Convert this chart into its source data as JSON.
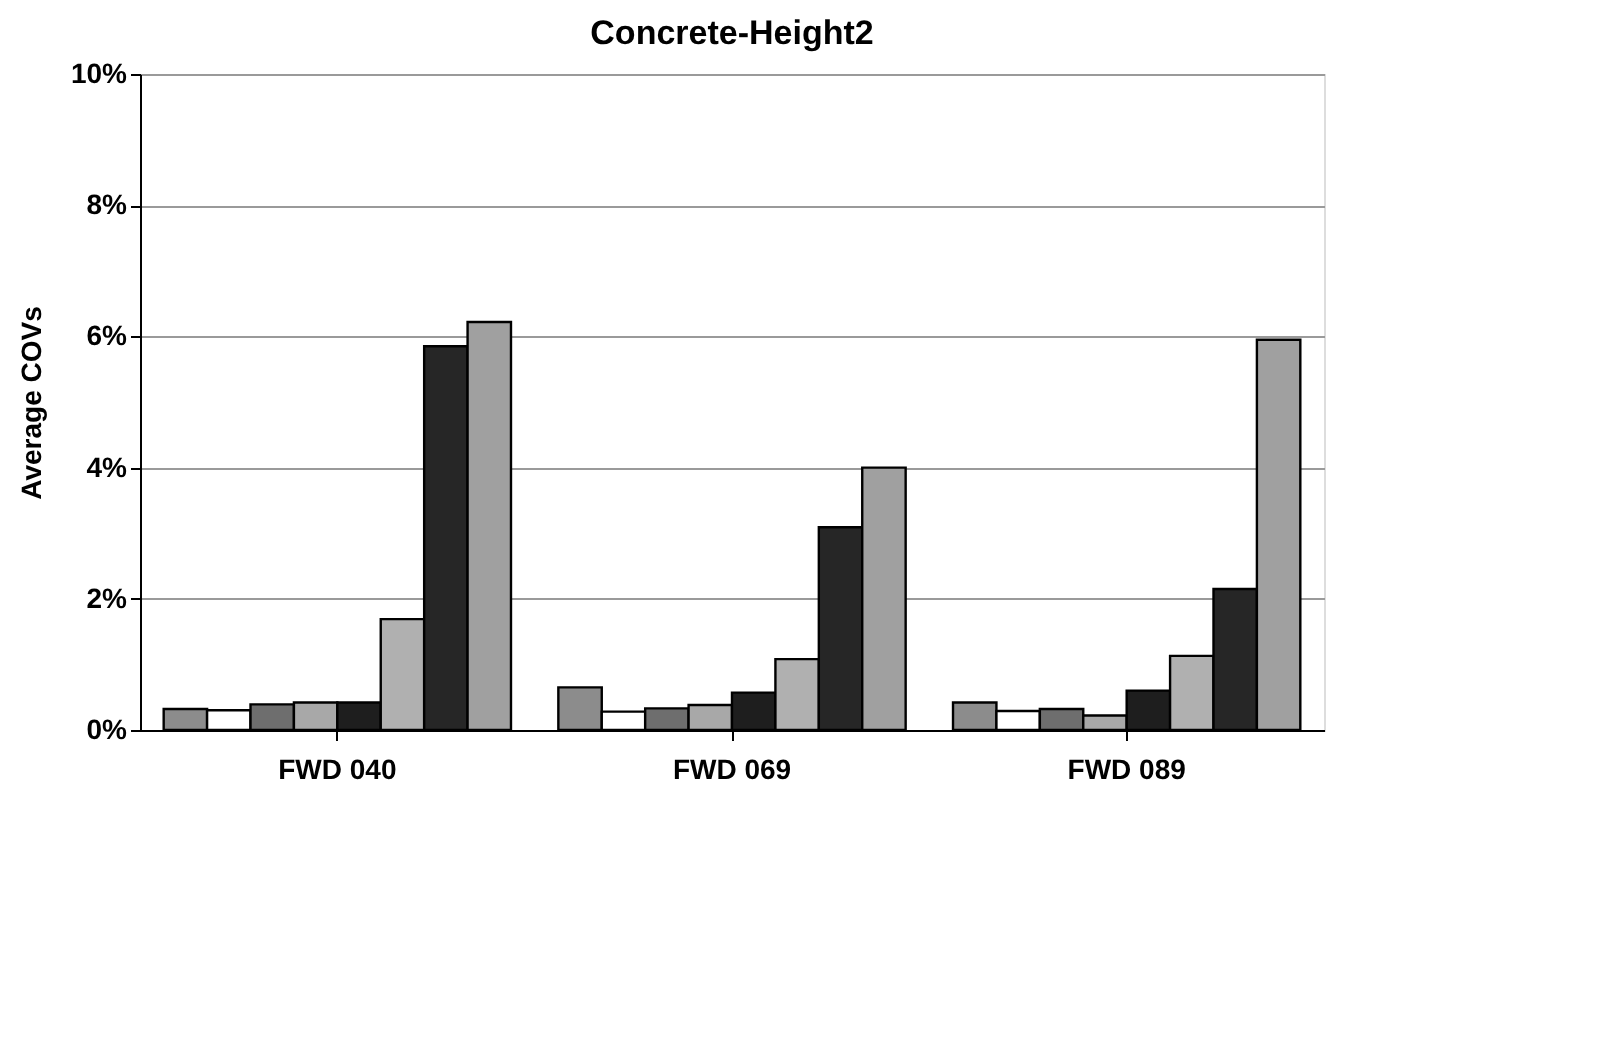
{
  "chart_data": {
    "type": "bar",
    "title": "Concrete-Height2",
    "ylabel": "Average COVs",
    "categories": [
      "FWD 040",
      "FWD 069",
      "FWD 089"
    ],
    "series": [
      {
        "color": "#8c8c8c",
        "values": [
          0.32,
          0.65,
          0.42
        ]
      },
      {
        "color": "#ffffff",
        "values": [
          0.3,
          0.28,
          0.29
        ]
      },
      {
        "color": "#6e6e6e",
        "values": [
          0.39,
          0.33,
          0.32
        ]
      },
      {
        "color": "#a8a8a8",
        "values": [
          0.42,
          0.38,
          0.22
        ]
      },
      {
        "color": "#1e1e1e",
        "values": [
          0.42,
          0.57,
          0.6
        ]
      },
      {
        "color": "#b0b0b0",
        "values": [
          1.69,
          1.08,
          1.13
        ]
      },
      {
        "color": "#262626",
        "values": [
          5.85,
          3.09,
          2.15
        ]
      },
      {
        "color": "#a0a0a0",
        "values": [
          6.22,
          4.0,
          5.95
        ]
      }
    ],
    "ylim": [
      0,
      10
    ],
    "yticks": [
      {
        "value": 0,
        "label": "0%"
      },
      {
        "value": 2,
        "label": "2%"
      },
      {
        "value": 4,
        "label": "4%"
      },
      {
        "value": 6,
        "label": "6%"
      },
      {
        "value": 8,
        "label": "8%"
      },
      {
        "value": 10,
        "label": "10%"
      }
    ],
    "grid": "y"
  }
}
